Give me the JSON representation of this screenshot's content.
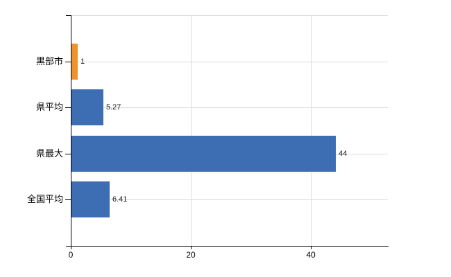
{
  "chart_data": {
    "type": "bar",
    "orientation": "horizontal",
    "title": "",
    "xlabel": "",
    "ylabel": "",
    "categories": [
      "黒部市",
      "県平均",
      "県最大",
      "全国平均"
    ],
    "values": [
      1,
      5.27,
      44,
      6.41
    ],
    "value_labels": [
      "1",
      "5.27",
      "44",
      "6.41"
    ],
    "series": [
      {
        "name": "",
        "values": [
          1,
          5.27,
          44,
          6.41
        ]
      }
    ],
    "x_ticks": [
      0,
      20,
      40
    ],
    "x_tick_labels": [
      "0",
      "20",
      "40"
    ],
    "xlim": [
      0,
      52.8
    ],
    "grid": true,
    "legend_position": "none",
    "colors": {
      "bar_default": "#3d6eb3",
      "bar_highlight": "#f0922f",
      "gridline": "#dcdcdc",
      "axis": "#000000",
      "text": "#000000"
    },
    "bar_colors": [
      "#f0922f",
      "#3d6eb3",
      "#3d6eb3",
      "#3d6eb3"
    ]
  }
}
